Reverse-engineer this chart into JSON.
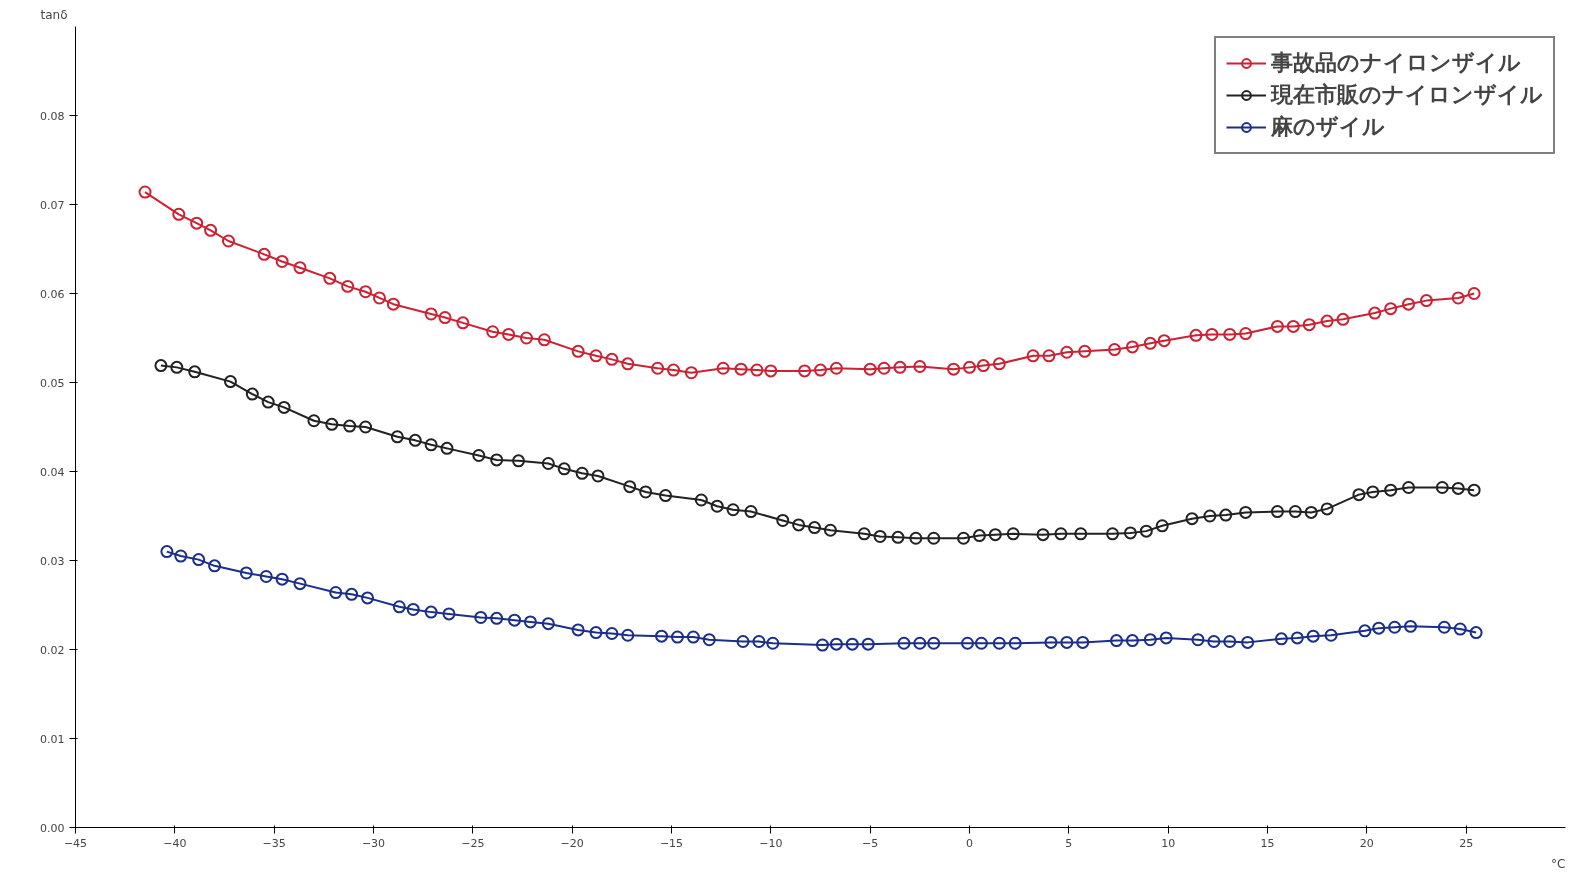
{
  "chart_data": {
    "type": "line",
    "ylabel": "tanδ",
    "xlabel": "°C",
    "xlim": [
      -45,
      30
    ],
    "xticks": [
      -45,
      -40,
      -35,
      -30,
      -25,
      -20,
      -15,
      -10,
      -5,
      0,
      5,
      10,
      15,
      20,
      25
    ],
    "ylim": [
      0,
      0.09
    ],
    "yticks": [
      {
        "value": 0,
        "label": "0.00"
      },
      0.01,
      0.02,
      0.03,
      0.04,
      0.05,
      0.06,
      0.07,
      0.08
    ],
    "grid": false,
    "legend": "top right",
    "marker": "circle",
    "line_style": "solid",
    "series": [
      {
        "name": "事故品のナイロンザイル",
        "color": "#cc2233",
        "x": [
          -41.5,
          -39.8,
          -38.9,
          -38.2,
          -37.3,
          -35.5,
          -34.6,
          -33.7,
          -32.2,
          -31.3,
          -30.4,
          -29.7,
          -29.0,
          -27.1,
          -26.4,
          -25.5,
          -24.0,
          -23.2,
          -22.3,
          -21.4,
          -19.7,
          -18.8,
          -18.0,
          -17.2,
          -15.7,
          -14.9,
          -14.0,
          -12.4,
          -11.5,
          -10.7,
          -10.0,
          -8.3,
          -7.5,
          -6.7,
          -5.0,
          -4.3,
          -3.5,
          -2.5,
          -0.8,
          0,
          0.7,
          1.5,
          3.2,
          4.0,
          4.9,
          5.8,
          7.3,
          8.2,
          9.1,
          9.8,
          11.4,
          12.2,
          13.1,
          13.9,
          15.5,
          16.3,
          17.1,
          18.0,
          18.8,
          20.4,
          21.2,
          22.1,
          23.0,
          24.6,
          25.4
        ],
        "values": [
          0.0714,
          0.0689,
          0.0679,
          0.0671,
          0.0659,
          0.0644,
          0.0636,
          0.0629,
          0.0617,
          0.0608,
          0.0602,
          0.0595,
          0.0588,
          0.0577,
          0.0573,
          0.0567,
          0.0557,
          0.0554,
          0.055,
          0.0548,
          0.0535,
          0.053,
          0.0526,
          0.0521,
          0.0516,
          0.0514,
          0.0511,
          0.0516,
          0.0515,
          0.0514,
          0.0513,
          0.0513,
          0.0514,
          0.0516,
          0.0515,
          0.0516,
          0.0517,
          0.0518,
          0.0515,
          0.0517,
          0.0519,
          0.0521,
          0.053,
          0.053,
          0.0534,
          0.0535,
          0.0537,
          0.054,
          0.0544,
          0.0547,
          0.0553,
          0.0554,
          0.0554,
          0.0555,
          0.0563,
          0.0563,
          0.0565,
          0.0569,
          0.0571,
          0.0578,
          0.0583,
          0.0588,
          0.0592,
          0.0595,
          0.06
        ]
      },
      {
        "name": "現在市販のナイロンザイル",
        "color": "#222222",
        "x": [
          -40.7,
          -39.9,
          -39.0,
          -37.2,
          -36.1,
          -35.3,
          -34.5,
          -33.0,
          -32.1,
          -31.2,
          -30.4,
          -28.8,
          -27.9,
          -27.1,
          -26.3,
          -24.7,
          -23.8,
          -22.7,
          -21.2,
          -20.4,
          -19.5,
          -18.7,
          -17.1,
          -16.3,
          -15.3,
          -13.5,
          -12.7,
          -11.9,
          -11.0,
          -9.4,
          -8.6,
          -7.8,
          -7.0,
          -5.3,
          -4.5,
          -3.6,
          -2.7,
          -1.8,
          -0.3,
          0.5,
          1.3,
          2.2,
          3.7,
          4.6,
          5.6,
          7.2,
          8.1,
          8.9,
          9.7,
          11.2,
          12.1,
          12.9,
          13.9,
          15.5,
          16.4,
          17.2,
          18.0,
          19.6,
          20.3,
          21.2,
          22.1,
          23.8,
          24.6,
          25.4
        ],
        "values": [
          0.0519,
          0.0517,
          0.0512,
          0.0501,
          0.0487,
          0.0478,
          0.0472,
          0.0457,
          0.0453,
          0.0451,
          0.045,
          0.0439,
          0.0435,
          0.043,
          0.0426,
          0.0418,
          0.0413,
          0.0412,
          0.0409,
          0.0403,
          0.0398,
          0.0395,
          0.0383,
          0.0377,
          0.0373,
          0.0368,
          0.0361,
          0.0357,
          0.0355,
          0.0345,
          0.034,
          0.0337,
          0.0334,
          0.033,
          0.0327,
          0.0326,
          0.0325,
          0.0325,
          0.0325,
          0.0328,
          0.0329,
          0.033,
          0.0329,
          0.033,
          0.033,
          0.033,
          0.0331,
          0.0333,
          0.0339,
          0.0347,
          0.035,
          0.0351,
          0.0354,
          0.0355,
          0.0355,
          0.0354,
          0.0358,
          0.0374,
          0.0377,
          0.0379,
          0.0382,
          0.0382,
          0.0381,
          0.0379
        ]
      },
      {
        "name": "麻のザイル",
        "color": "#1a2e8a",
        "x": [
          -40.4,
          -39.7,
          -38.8,
          -38.0,
          -36.4,
          -35.4,
          -34.6,
          -33.7,
          -31.9,
          -31.1,
          -30.3,
          -28.7,
          -28.0,
          -27.1,
          -26.2,
          -24.6,
          -23.8,
          -22.9,
          -22.1,
          -21.2,
          -19.7,
          -18.8,
          -18.0,
          -17.2,
          -15.5,
          -14.7,
          -13.9,
          -13.1,
          -11.4,
          -10.6,
          -9.9,
          -7.4,
          -6.7,
          -5.9,
          -5.1,
          -3.3,
          -2.5,
          -1.8,
          -0.1,
          0.6,
          1.5,
          2.3,
          4.1,
          4.9,
          5.7,
          7.4,
          8.2,
          9.1,
          9.9,
          11.5,
          12.3,
          13.1,
          14.0,
          15.7,
          16.5,
          17.3,
          18.2,
          19.9,
          20.6,
          21.4,
          22.2,
          23.9,
          24.7,
          25.5
        ],
        "values": [
          0.031,
          0.0305,
          0.0301,
          0.0294,
          0.0286,
          0.0282,
          0.0279,
          0.0274,
          0.0264,
          0.0262,
          0.0258,
          0.0248,
          0.0245,
          0.0242,
          0.024,
          0.0236,
          0.0235,
          0.0233,
          0.0231,
          0.0229,
          0.0222,
          0.0219,
          0.0218,
          0.0216,
          0.0215,
          0.0214,
          0.0214,
          0.0211,
          0.0209,
          0.0209,
          0.0207,
          0.0205,
          0.0206,
          0.0206,
          0.0206,
          0.0207,
          0.0207,
          0.0207,
          0.0207,
          0.0207,
          0.0207,
          0.0207,
          0.0208,
          0.0208,
          0.0208,
          0.021,
          0.021,
          0.0211,
          0.0213,
          0.0211,
          0.0209,
          0.0209,
          0.0208,
          0.0212,
          0.0213,
          0.0215,
          0.0216,
          0.0221,
          0.0224,
          0.0225,
          0.0226,
          0.0225,
          0.0223,
          0.0219
        ]
      }
    ]
  }
}
